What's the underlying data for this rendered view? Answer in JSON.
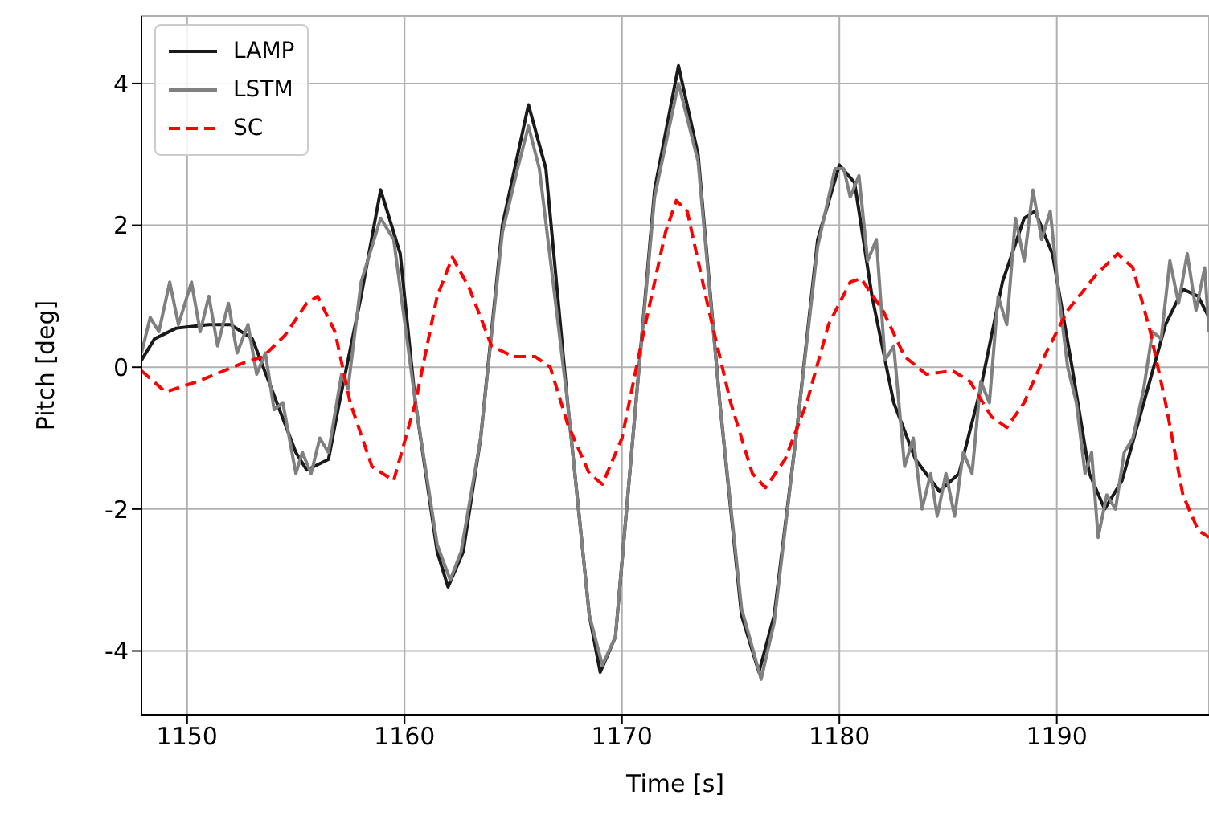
{
  "chart_data": {
    "type": "line",
    "xlabel": "Time [s]",
    "ylabel": "Pitch [deg]",
    "xlim": [
      1147.9,
      1197
    ],
    "xticks": [
      1150,
      1160,
      1170,
      1180,
      1190
    ],
    "ylim": [
      -4.9,
      4.95
    ],
    "yticks": [
      -4,
      -2,
      0,
      2,
      4
    ],
    "grid": true,
    "legend": "top left",
    "marker": "none",
    "series": [
      {
        "name": "LAMP",
        "color": "#1a1a1a",
        "line_style": "solid",
        "x": [
          1147.9,
          1148.5,
          1149.5,
          1151,
          1152,
          1153,
          1154,
          1155,
          1155.5,
          1156.5,
          1157,
          1158,
          1158.9,
          1159.8,
          1160.5,
          1161.5,
          1162,
          1162.7,
          1163.5,
          1164.5,
          1165.7,
          1166.5,
          1167.5,
          1168.5,
          1169,
          1169.7,
          1170.5,
          1171.5,
          1172.6,
          1173.5,
          1174.5,
          1175.5,
          1176.3,
          1177,
          1178,
          1179,
          1180,
          1180.7,
          1181.5,
          1182.5,
          1183.5,
          1184.6,
          1185.5,
          1186.5,
          1187.5,
          1188.5,
          1189,
          1189.8,
          1190.7,
          1191.5,
          1192.2,
          1193,
          1194,
          1195,
          1195.8,
          1196.5,
          1197
        ],
        "values": [
          0.1,
          0.4,
          0.55,
          0.6,
          0.6,
          0.4,
          -0.4,
          -1.2,
          -1.45,
          -1.3,
          -0.5,
          1.0,
          2.5,
          1.6,
          -0.5,
          -2.6,
          -3.1,
          -2.6,
          -1.0,
          2.0,
          3.7,
          2.8,
          -0.5,
          -3.5,
          -4.3,
          -3.8,
          -1.0,
          2.5,
          4.25,
          3.0,
          -0.5,
          -3.5,
          -4.3,
          -3.5,
          -1.0,
          1.8,
          2.85,
          2.6,
          1.0,
          -0.5,
          -1.3,
          -1.75,
          -1.5,
          -0.3,
          1.2,
          2.1,
          2.2,
          1.6,
          0,
          -1.5,
          -2.0,
          -1.6,
          -0.5,
          0.6,
          1.1,
          1.0,
          0.7
        ]
      },
      {
        "name": "LSTM",
        "color": "#808080",
        "line_style": "solid",
        "x": [
          1147.9,
          1148.3,
          1148.7,
          1149.2,
          1149.6,
          1150.2,
          1150.6,
          1151,
          1151.4,
          1151.9,
          1152.3,
          1152.8,
          1153.2,
          1153.6,
          1154,
          1154.4,
          1155,
          1155.3,
          1155.7,
          1156.1,
          1156.5,
          1157.1,
          1157.4,
          1158,
          1158.9,
          1159.5,
          1160.5,
          1161.5,
          1162.1,
          1162.6,
          1163.5,
          1164.5,
          1165.2,
          1165.7,
          1166.2,
          1167.5,
          1168.5,
          1169.1,
          1169.7,
          1170.5,
          1171.5,
          1172.6,
          1173.5,
          1174.5,
          1175.5,
          1176.4,
          1177,
          1178,
          1179,
          1179.8,
          1180.2,
          1180.5,
          1180.9,
          1181.3,
          1181.7,
          1182.1,
          1182.5,
          1183,
          1183.4,
          1183.8,
          1184.2,
          1184.5,
          1184.9,
          1185.3,
          1185.7,
          1186.1,
          1186.5,
          1186.9,
          1187.3,
          1187.7,
          1188.1,
          1188.5,
          1188.9,
          1189.3,
          1189.7,
          1190.1,
          1190.5,
          1190.9,
          1191.3,
          1191.6,
          1191.9,
          1192.3,
          1192.7,
          1193.1,
          1193.5,
          1194,
          1194.4,
          1194.8,
          1195.2,
          1195.6,
          1196,
          1196.4,
          1196.8,
          1197
        ],
        "values": [
          0.2,
          0.7,
          0.5,
          1.2,
          0.6,
          1.2,
          0.5,
          1.0,
          0.3,
          0.9,
          0.2,
          0.6,
          -0.1,
          0.2,
          -0.6,
          -0.5,
          -1.5,
          -1.2,
          -1.5,
          -1.0,
          -1.2,
          -0.1,
          -0.3,
          1.2,
          2.1,
          1.8,
          -0.5,
          -2.5,
          -3.0,
          -2.6,
          -1.0,
          1.9,
          2.8,
          3.4,
          2.8,
          -0.5,
          -3.5,
          -4.2,
          -3.8,
          -1.0,
          2.4,
          4.0,
          2.9,
          -0.5,
          -3.4,
          -4.4,
          -3.6,
          -1.0,
          1.7,
          2.8,
          2.8,
          2.4,
          2.7,
          1.5,
          1.8,
          0.1,
          0.3,
          -1.4,
          -1.0,
          -2.0,
          -1.5,
          -2.1,
          -1.5,
          -2.1,
          -1.2,
          -1.5,
          -0.2,
          -0.5,
          1.0,
          0.6,
          2.1,
          1.5,
          2.5,
          1.8,
          2.2,
          1.0,
          0.0,
          -0.5,
          -1.5,
          -1.2,
          -2.4,
          -1.8,
          -2.0,
          -1.2,
          -1.0,
          -0.3,
          0.5,
          0.4,
          1.5,
          0.9,
          1.6,
          0.8,
          1.4,
          0.5
        ]
      },
      {
        "name": "SC",
        "color": "#ff0000",
        "line_style": "dashed",
        "x": [
          1147.9,
          1149,
          1150.5,
          1152.5,
          1153.5,
          1154.5,
          1155.5,
          1156,
          1156.8,
          1157.5,
          1158.5,
          1159.5,
          1160.5,
          1161.5,
          1162.2,
          1163,
          1164,
          1165,
          1166,
          1166.7,
          1167.5,
          1168.5,
          1169.1,
          1170,
          1171,
          1172,
          1172.5,
          1173,
          1174,
          1175,
          1176,
          1176.6,
          1177.5,
          1178.5,
          1179.5,
          1180.5,
          1181,
          1182,
          1183,
          1184,
          1185.2,
          1186,
          1187,
          1187.7,
          1188.5,
          1189.5,
          1190.5,
          1191.8,
          1192.8,
          1193.5,
          1194.3,
          1195,
          1195.8,
          1196.5,
          1197
        ],
        "values": [
          -0.05,
          -0.35,
          -0.2,
          0.05,
          0.15,
          0.45,
          0.9,
          1.0,
          0.5,
          -0.5,
          -1.4,
          -1.6,
          -0.5,
          1.0,
          1.55,
          1.1,
          0.3,
          0.15,
          0.15,
          0.0,
          -0.8,
          -1.5,
          -1.65,
          -1.0,
          0.5,
          1.9,
          2.35,
          2.2,
          0.8,
          -0.5,
          -1.5,
          -1.7,
          -1.3,
          -0.5,
          0.6,
          1.2,
          1.25,
          0.8,
          0.15,
          -0.1,
          -0.05,
          -0.2,
          -0.7,
          -0.85,
          -0.5,
          0.2,
          0.8,
          1.3,
          1.6,
          1.4,
          0.5,
          -0.5,
          -1.8,
          -2.3,
          -2.4
        ]
      }
    ]
  }
}
